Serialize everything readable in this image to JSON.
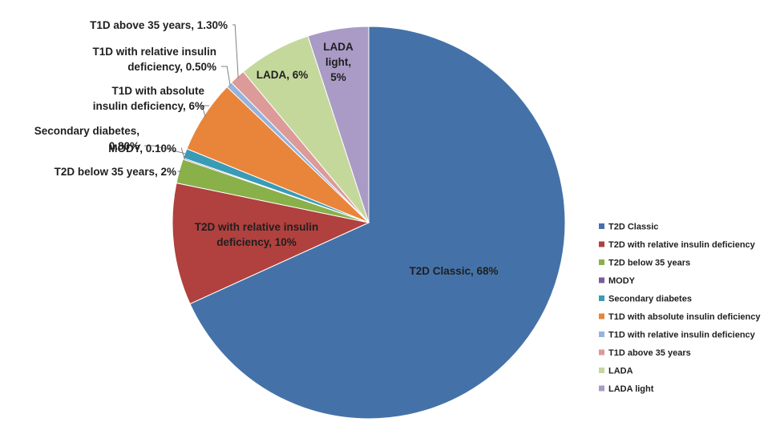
{
  "chart_data": {
    "type": "pie",
    "title": "",
    "start_angle_deg": 0,
    "direction": "clockwise",
    "legend_position": "right",
    "slices": [
      {
        "name": "T2D Classic",
        "value": 68,
        "color": "#4472A8",
        "label_lines": [
          "T2D Classic, 68%"
        ]
      },
      {
        "name": "T2D with relative insulin deficiency",
        "value": 10,
        "color": "#B0413E",
        "label_lines": [
          "T2D with relative insulin",
          "deficiency, 10%"
        ]
      },
      {
        "name": "T2D below 35 years",
        "value": 2,
        "color": "#8AB04A",
        "label_lines": [
          "T2D below 35 years, 2%"
        ]
      },
      {
        "name": "MODY",
        "value": 0.1,
        "color": "#7A5B9B",
        "label_lines": [
          "MODY, 0.10%"
        ]
      },
      {
        "name": "Secondary diabetes",
        "value": 0.8,
        "color": "#3A9BB6",
        "label_lines": [
          "Secondary diabetes,",
          "0.80%"
        ]
      },
      {
        "name": "T1D with absolute insulin deficiency",
        "value": 6,
        "color": "#E8853A",
        "label_lines": [
          "T1D with absolute",
          "insulin deficiency, 6%"
        ]
      },
      {
        "name": "T1D with relative insulin deficiency",
        "value": 0.5,
        "color": "#94B4DD",
        "label_lines": [
          "T1D with relative insulin",
          "deficiency, 0.50%"
        ]
      },
      {
        "name": "T1D above 35 years",
        "value": 1.3,
        "color": "#DC9A98",
        "label_lines": [
          "T1D above 35 years, 1.30%"
        ]
      },
      {
        "name": "LADA",
        "value": 6,
        "color": "#C4D89C",
        "label_lines": [
          "LADA, 6%"
        ]
      },
      {
        "name": "LADA light",
        "value": 5,
        "color": "#A99BC6",
        "label_lines": [
          "LADA",
          "light,",
          "5%"
        ]
      }
    ]
  }
}
